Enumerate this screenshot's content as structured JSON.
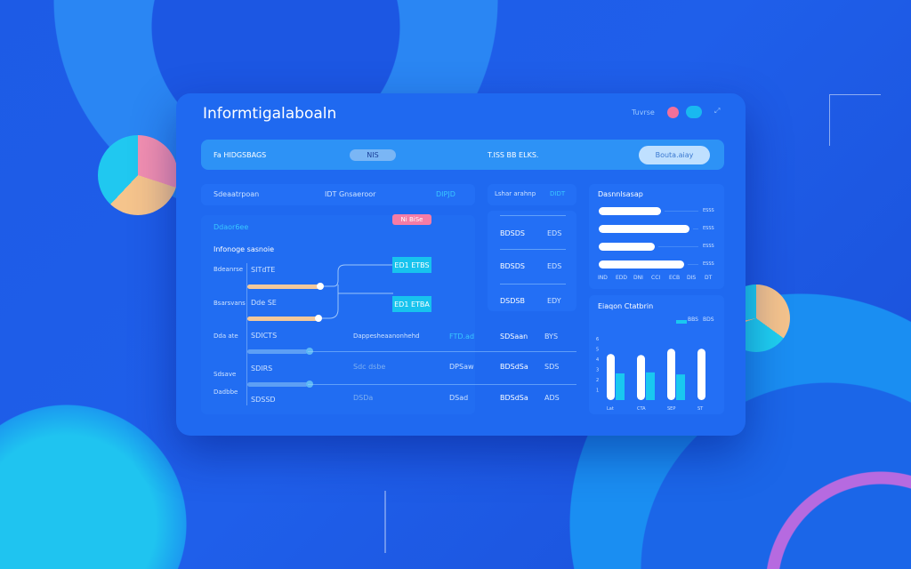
{
  "header": {
    "title": "Informtigalaboaln",
    "status_text": "Tuvrse",
    "colors": {
      "pink": "#f2709a",
      "cyan": "#19b8f0"
    }
  },
  "banner": {
    "label": "Fa HIDGSBAGS",
    "badge": "NIS",
    "center_text": "T.ISS BB ELKS.",
    "button": "Bouta.aiay"
  },
  "row": {
    "left_label": "Sdeaatrpoan",
    "mid_label": "IDT Gnsaeroor",
    "right_label": "DIPJD",
    "panel2_label": "Lshar arahnp",
    "panel2_value": "DIDT"
  },
  "main": {
    "heading": "Ddaor6ee",
    "tag": "Ni BiSe",
    "subheading": "Infonoge sasnoie",
    "rows": [
      {
        "label": "Bdeanrse",
        "sub": "SITdTE",
        "fill": 0.62
      },
      {
        "label": "Bsarsvans",
        "sub": "Dde SE",
        "fill": 0.6
      },
      {
        "label": "Dda ate",
        "sub": "SDICTS",
        "fill": 0.48
      },
      {
        "label": "Sdsave",
        "sub": "SDIRS",
        "fill": 0.48
      },
      {
        "label": "Dadbbe",
        "sub": "SDSSD"
      }
    ],
    "nodes": [
      "ED1 ETBS",
      "ED1 ETBA"
    ],
    "table": [
      {
        "text": "Dappesheaanonhehd",
        "value": "FTD.ad",
        "name": "SDSaan",
        "code": "BYS"
      },
      {
        "text": "Sdc dsbe",
        "value": "DPSaw",
        "name": "BDSdSa",
        "code": "SDS"
      },
      {
        "text": "DSDa",
        "value": "DSad",
        "name": "BDSdSa",
        "code": "ADS"
      }
    ]
  },
  "list": {
    "items": [
      {
        "label": "BDSDS",
        "value": "EDS"
      },
      {
        "label": "BDSDS",
        "value": "EDS"
      },
      {
        "label": "DSDSB",
        "value": "EDY"
      }
    ]
  },
  "bars": {
    "title": "Dasnnlsasap",
    "items": [
      {
        "fill": 0.55,
        "label": "ESSS"
      },
      {
        "fill": 0.8,
        "label": "ESSS"
      },
      {
        "fill": 0.49,
        "label": "ESSS"
      },
      {
        "fill": 0.75,
        "label": "ESSS"
      }
    ],
    "axis": [
      "IND",
      "EDD",
      "DNI",
      "CCI",
      "ECB",
      "DIS",
      "DT"
    ]
  },
  "chart_data": {
    "type": "bar",
    "title": "Eiaqon Ctatbrin",
    "legend": [
      "BBS",
      "BDS"
    ],
    "categories": [
      "Lat",
      "CTA",
      "SEP",
      "ST"
    ],
    "yticks": [
      1,
      2,
      3,
      4,
      5,
      6
    ],
    "ylim": [
      0,
      6.5
    ],
    "series": [
      {
        "values": [
          4.5,
          4.4,
          5.0,
          5.0
        ],
        "color": "#ffffff"
      },
      {
        "values": [
          2.6,
          2.7,
          2.5,
          0
        ],
        "color": "#19c8f0"
      }
    ]
  }
}
